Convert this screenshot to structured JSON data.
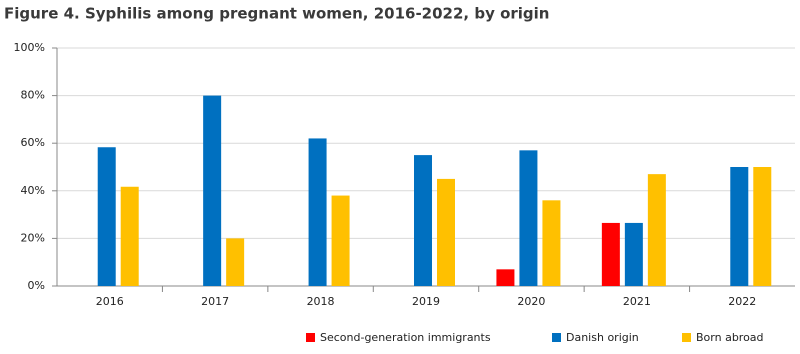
{
  "chart_data": {
    "type": "bar",
    "title": "Figure 4. Syphilis among pregnant women, 2016-2022, by origin",
    "categories": [
      "2016",
      "2017",
      "2018",
      "2019",
      "2020",
      "2021",
      "2022"
    ],
    "series": [
      {
        "name": "Second-generation immigrants",
        "color": "#ff0000",
        "values": [
          0,
          0,
          0,
          0,
          7,
          26.5,
          0
        ]
      },
      {
        "name": "Danish origin",
        "color": "#0070c0",
        "values": [
          58.3,
          80,
          62,
          55,
          57,
          26.5,
          50
        ]
      },
      {
        "name": "Born abroad",
        "color": "#ffc000",
        "values": [
          41.7,
          20,
          38,
          45,
          36,
          47,
          50
        ]
      }
    ],
    "ylim": [
      0,
      100
    ],
    "yticks": [
      {
        "value": 0,
        "label": "0%"
      },
      {
        "value": 20,
        "label": "20%"
      },
      {
        "value": 40,
        "label": "40%"
      },
      {
        "value": 60,
        "label": "60%"
      },
      {
        "value": 80,
        "label": "80%"
      },
      {
        "value": 100,
        "label": "100%"
      }
    ],
    "grid": true,
    "legend": "bottom"
  }
}
